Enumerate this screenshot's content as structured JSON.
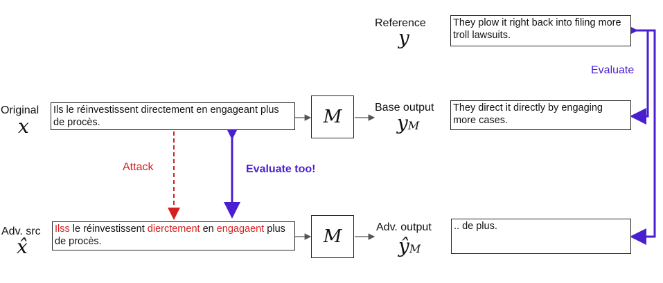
{
  "labels": {
    "reference": "Reference",
    "original": "Original",
    "base_output": "Base output",
    "adv_src": "Adv. src",
    "adv_output": "Adv. output"
  },
  "math": {
    "y": "y",
    "x": "x",
    "yM_base": "y",
    "yM_sub": "M",
    "x_hat": "x̂",
    "y_hat": "ŷ",
    "y_hat_sub": "M",
    "M": "M"
  },
  "texts": {
    "reference": "They plow it right back into filing more troll lawsuits.",
    "original": "Ils le réinvestissent directement en engageant plus de procès.",
    "base_output": "They direct it directly by engaging more cases.",
    "adv_output": ".. de plus.",
    "adv_src": {
      "w1": "Ilss",
      "w2": " le réinvestissent ",
      "w3": "dierctement",
      "w4": " en ",
      "w5": "engagaent",
      "w6": " plus de procès."
    }
  },
  "annotations": {
    "attack": "Attack",
    "evaluate_too": "Evaluate too!",
    "evaluate": "Evaluate"
  },
  "colors": {
    "attack": "#d42020",
    "evaluate": "#4a1fd0"
  }
}
